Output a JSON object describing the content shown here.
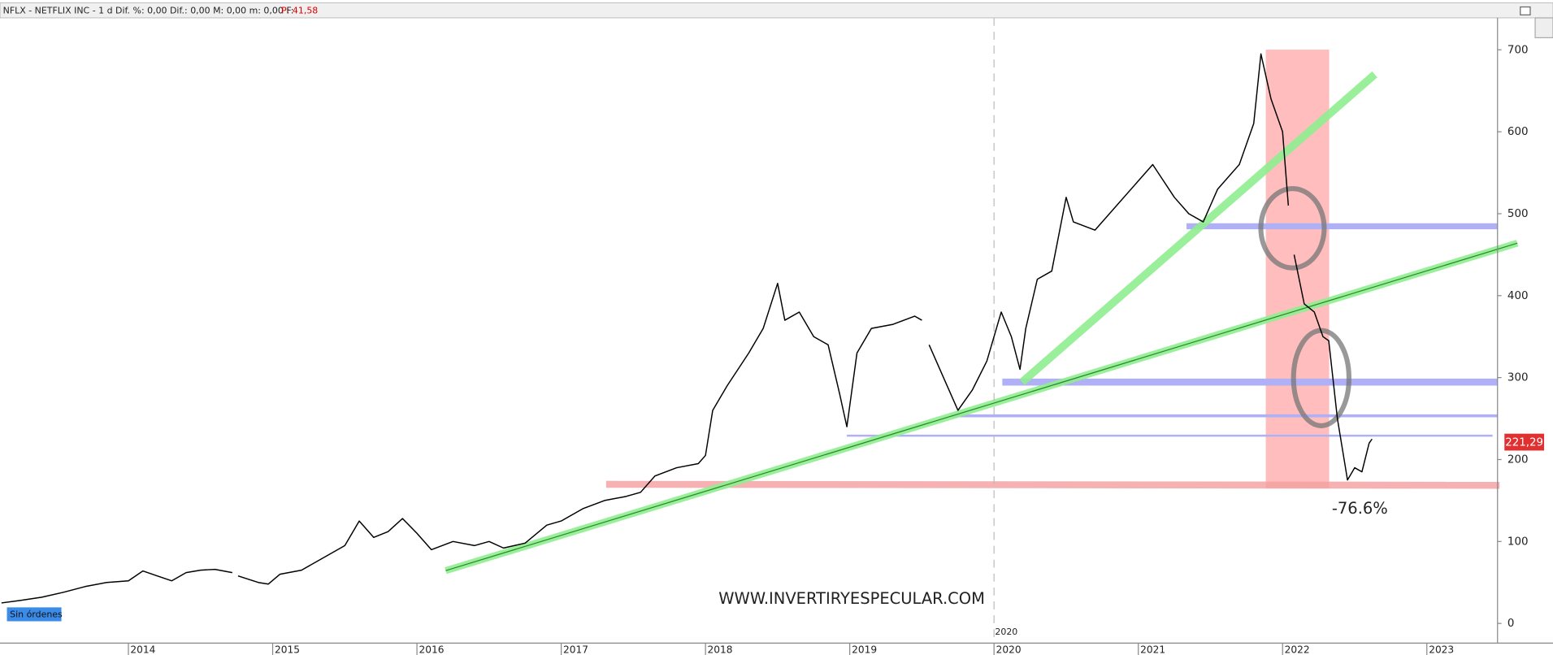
{
  "header": {
    "symbol": "NFLX - NETFLIX INC -  1 d  Dif. %: 0,00  Dif.: 0,00  M: 0,00  m: 0,00  F:",
    "price": "P: 41,58"
  },
  "chart_data": {
    "type": "line",
    "color": "#000000",
    "x": [
      2013.12,
      2013.25,
      2013.4,
      2013.55,
      2013.7,
      2013.85,
      2014.0,
      2014.1,
      2014.2,
      2014.3,
      2014.4,
      2014.5,
      2014.6,
      2014.72,
      2014.74,
      2014.76,
      2014.9,
      2014.97,
      2015.05,
      2015.2,
      2015.35,
      2015.5,
      2015.6,
      2015.7,
      2015.8,
      2015.9,
      2016.0,
      2016.1,
      2016.25,
      2016.4,
      2016.5,
      2016.6,
      2016.75,
      2016.9,
      2017.0,
      2017.15,
      2017.3,
      2017.45,
      2017.55,
      2017.65,
      2017.8,
      2017.95,
      2018.0,
      2018.05,
      2018.15,
      2018.3,
      2018.4,
      2018.5,
      2018.55,
      2018.65,
      2018.75,
      2018.85,
      2018.93,
      2018.98,
      2019.05,
      2019.15,
      2019.3,
      2019.45,
      2019.5,
      2019.52,
      2019.55,
      2019.65,
      2019.75,
      2019.85,
      2019.95,
      2020.05,
      2020.12,
      2020.18,
      2020.22,
      2020.3,
      2020.4,
      2020.5,
      2020.55,
      2020.7,
      2020.85,
      2021.0,
      2021.1,
      2021.25,
      2021.35,
      2021.45,
      2021.55,
      2021.7,
      2021.8,
      2021.85,
      2021.92,
      2022.0,
      2022.04,
      2022.06,
      2022.08,
      2022.15,
      2022.22,
      2022.28,
      2022.32,
      2022.38,
      2022.45,
      2022.5,
      2022.55,
      2022.6,
      2022.62
    ],
    "values": [
      25,
      28,
      32,
      38,
      45,
      50,
      52,
      64,
      58,
      52,
      62,
      65,
      66,
      62,
      null,
      58,
      50,
      48,
      60,
      65,
      80,
      95,
      125,
      105,
      112,
      128,
      110,
      90,
      100,
      95,
      100,
      92,
      98,
      120,
      125,
      140,
      150,
      155,
      160,
      180,
      190,
      195,
      205,
      260,
      290,
      330,
      360,
      415,
      370,
      380,
      350,
      340,
      280,
      240,
      330,
      360,
      365,
      375,
      370,
      null,
      340,
      300,
      260,
      285,
      320,
      380,
      350,
      310,
      360,
      420,
      430,
      520,
      490,
      480,
      510,
      540,
      560,
      520,
      500,
      490,
      530,
      560,
      610,
      695,
      640,
      600,
      510,
      null,
      450,
      390,
      380,
      350,
      345,
      250,
      175,
      190,
      185,
      220,
      225
    ],
    "xlim": [
      2013.11,
      2023.49
    ],
    "ylim": [
      -24,
      739
    ],
    "xticks": [
      2014,
      2015,
      2016,
      2017,
      2018,
      2019,
      2020,
      2021,
      2022,
      2023
    ],
    "yticks": [
      0,
      100,
      200,
      300,
      400,
      500,
      600,
      700
    ],
    "grid": false,
    "divider": {
      "x": 2020
    },
    "last_price_label": "221,29",
    "annotations": [
      "-76.6%",
      "WWW.INVERTIRYESPECULAR.COM"
    ],
    "status": "Sin órdenes"
  }
}
